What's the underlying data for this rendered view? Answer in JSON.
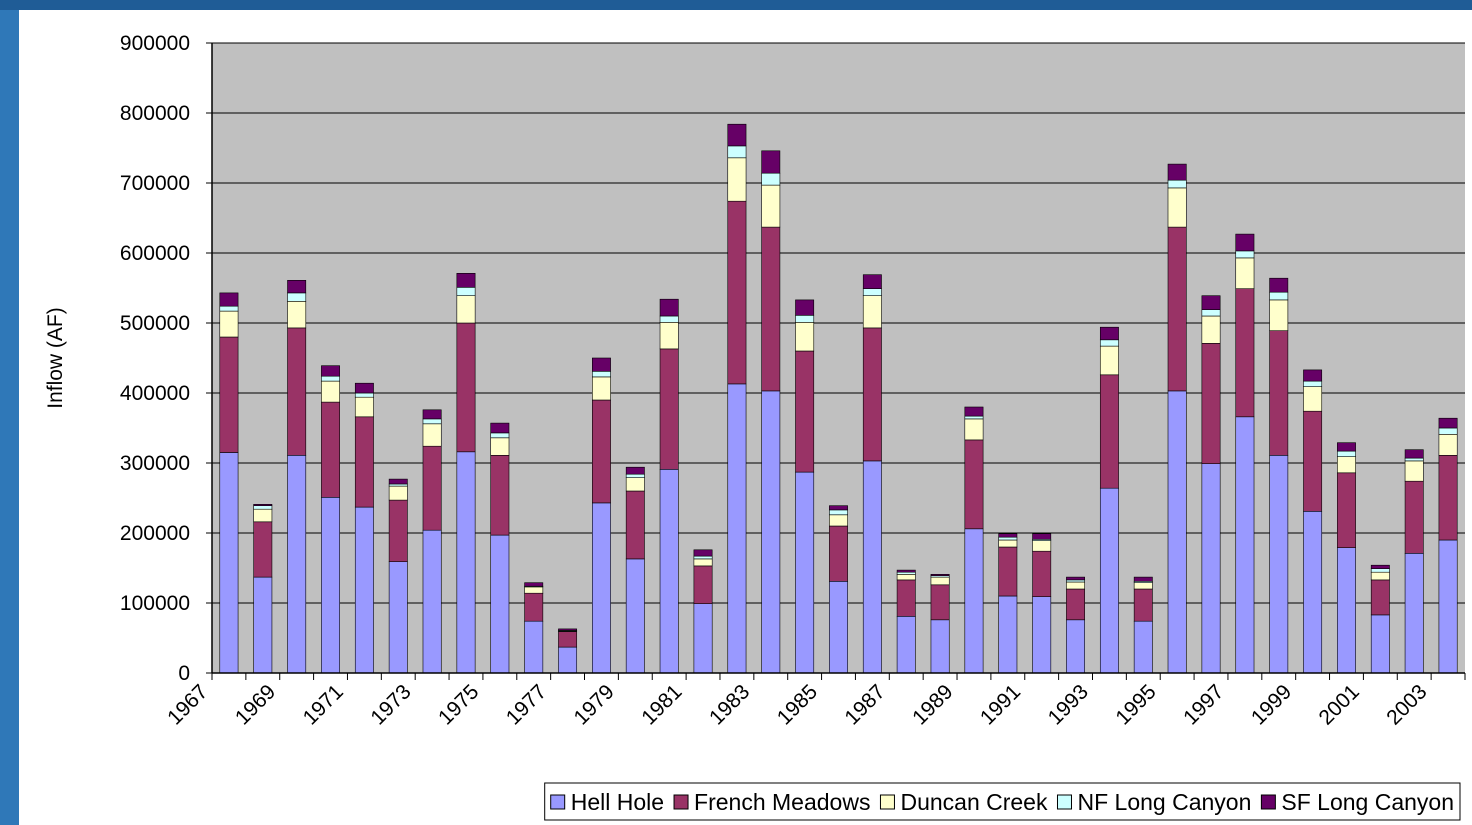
{
  "chart_data": {
    "type": "stacked-bar",
    "y_label": "Inflow (AF)",
    "categories": [
      "1967",
      null,
      "1969",
      null,
      "1971",
      null,
      "1973",
      null,
      "1975",
      null,
      "1977",
      null,
      "1979",
      null,
      "1981",
      null,
      "1983",
      null,
      "1985",
      null,
      "1987",
      null,
      "1989",
      null,
      "1991",
      null,
      "1993",
      null,
      "1995",
      null,
      "1997",
      null,
      "1999",
      null,
      "2001",
      null,
      "2003"
    ],
    "series": [
      {
        "name": "Hell Hole",
        "color": "#9999ff",
        "values": [
          315000,
          137000,
          311000,
          251000,
          237000,
          159000,
          204000,
          316000,
          197000,
          74000,
          37000,
          243000,
          163000,
          291000,
          99000,
          413000,
          403000,
          287000,
          131000,
          303000,
          81000,
          76000,
          206000,
          110000,
          109000,
          76000,
          264000,
          74000,
          403000,
          299000,
          366000,
          311000,
          231000,
          179000,
          83000,
          171000,
          190000
        ]
      },
      {
        "name": "French Meadows",
        "color": "#993366",
        "values": [
          165000,
          79000,
          182000,
          136000,
          129000,
          88000,
          120000,
          184000,
          114000,
          40000,
          22000,
          147000,
          97000,
          172000,
          54000,
          261000,
          234000,
          173000,
          79000,
          190000,
          52000,
          50000,
          127000,
          70000,
          65000,
          44000,
          162000,
          46000,
          234000,
          172000,
          183000,
          178000,
          143000,
          107000,
          50000,
          103000,
          121000
        ]
      },
      {
        "name": "Duncan Creek",
        "color": "#ffffcc",
        "values": [
          37000,
          18000,
          38000,
          30000,
          28000,
          20000,
          32000,
          39000,
          25000,
          9000,
          1000,
          33000,
          19000,
          38000,
          10000,
          62000,
          60000,
          41000,
          16000,
          46000,
          8000,
          11000,
          30000,
          10000,
          15000,
          10000,
          41000,
          9000,
          56000,
          39000,
          44000,
          44000,
          35000,
          23000,
          11000,
          29000,
          30000
        ]
      },
      {
        "name": "NF Long Canyon",
        "color": "#ccffff",
        "values": [
          7000,
          5000,
          12000,
          7000,
          6000,
          3000,
          7000,
          12000,
          7000,
          1000,
          1000,
          8000,
          5000,
          9000,
          4000,
          17000,
          17000,
          10000,
          7000,
          10000,
          3000,
          2000,
          4000,
          4000,
          2000,
          3000,
          9000,
          2000,
          11000,
          9000,
          10000,
          11000,
          8000,
          8000,
          5000,
          4000,
          9000
        ]
      },
      {
        "name": "SF Long Canyon",
        "color": "#660066",
        "values": [
          19000,
          2000,
          18000,
          15000,
          14000,
          7000,
          13000,
          20000,
          14000,
          5000,
          2000,
          19000,
          10000,
          24000,
          9000,
          31000,
          32000,
          22000,
          6000,
          20000,
          3000,
          2000,
          13000,
          5000,
          8000,
          4000,
          18000,
          6000,
          23000,
          20000,
          24000,
          20000,
          16000,
          12000,
          5000,
          12000,
          14000
        ]
      }
    ],
    "ylim": [
      0,
      900000
    ],
    "yticks": [
      0,
      100000,
      200000,
      300000,
      400000,
      500000,
      600000,
      700000,
      800000,
      900000
    ],
    "grid": true,
    "legend": "bottom"
  }
}
